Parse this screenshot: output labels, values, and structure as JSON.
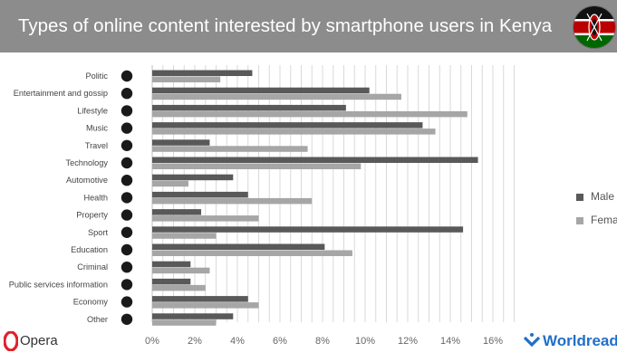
{
  "header": {
    "title": "Types of online content interested by smartphone users in Kenya"
  },
  "footer": {
    "opera_label": "Opera",
    "worldreader_label": "Worldread"
  },
  "colors": {
    "header_bg": "#8c8c8c",
    "male": "#595959",
    "female": "#a6a6a6",
    "opera_red": "#e0212b",
    "worldreader_blue": "#1f6fc9"
  },
  "chart_data": {
    "type": "bar",
    "orientation": "horizontal",
    "categories": [
      "Politic",
      "Entertainment and gossip",
      "Lifestyle",
      "Music",
      "Travel",
      "Technology",
      "Automotive",
      "Health",
      "Property",
      "Sport",
      "Education",
      "Criminal",
      "Public services information",
      "Economy",
      "Other"
    ],
    "category_icons": [
      "person-icon",
      "theater-icon",
      "sparkle-icon",
      "music-note-icon",
      "globe-icon",
      "robot-icon",
      "car-icon",
      "heart-icon",
      "house-icon",
      "runner-icon",
      "graduation-cap-icon",
      "handcuffs-icon",
      "government-building-icon",
      "piggy-bank-icon",
      "dots-icon"
    ],
    "series": [
      {
        "name": "Male",
        "values": [
          4.7,
          10.2,
          9.1,
          12.7,
          2.7,
          15.3,
          3.8,
          4.5,
          2.3,
          14.6,
          8.1,
          1.8,
          1.8,
          4.5,
          3.8
        ]
      },
      {
        "name": "Female",
        "values": [
          3.2,
          11.7,
          14.8,
          13.3,
          7.3,
          9.8,
          1.7,
          7.5,
          5.0,
          3.0,
          9.4,
          2.7,
          2.5,
          5.0,
          3.0
        ]
      }
    ],
    "x_ticks": [
      "0%",
      "2%",
      "4%",
      "6%",
      "8%",
      "10%",
      "12%",
      "14%",
      "16%"
    ],
    "xlim": [
      0,
      17
    ],
    "grid": "vertical",
    "legend": {
      "placement": "right",
      "labels": [
        "Male",
        "Femal"
      ]
    }
  }
}
